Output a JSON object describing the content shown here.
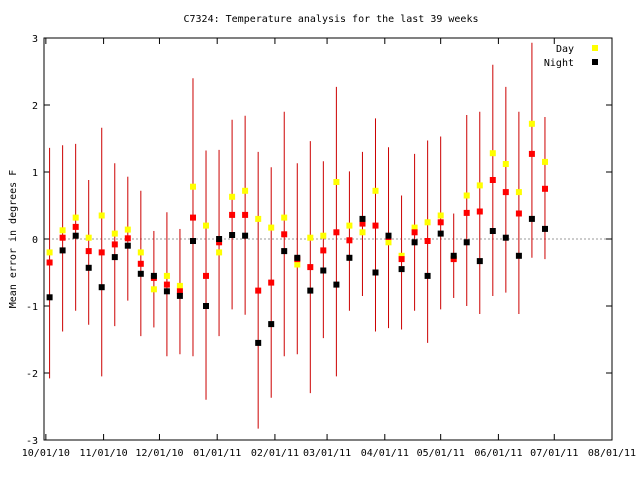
{
  "chart_data": {
    "type": "scatter",
    "title": "C7324: Temperature analysis for the last 39 weeks",
    "ylabel": "Mean error in degrees F",
    "xlabel": "",
    "ylim": [
      -3,
      3
    ],
    "xlim": [
      "2010-09-30",
      "2011-08-01"
    ],
    "grid": false,
    "zero_line": true,
    "legend_position": "top-right",
    "y_ticks": [
      -3,
      -2,
      -1,
      0,
      1,
      2,
      3
    ],
    "x_ticks": [
      {
        "date": "2010-10-01",
        "label": "10/01/10"
      },
      {
        "date": "2010-11-01",
        "label": "11/01/10"
      },
      {
        "date": "2010-12-01",
        "label": "12/01/10"
      },
      {
        "date": "2011-01-01",
        "label": "01/01/11"
      },
      {
        "date": "2011-02-01",
        "label": "02/01/11"
      },
      {
        "date": "2011-03-01",
        "label": "03/01/11"
      },
      {
        "date": "2011-04-01",
        "label": "04/01/11"
      },
      {
        "date": "2011-05-01",
        "label": "05/01/11"
      },
      {
        "date": "2011-06-01",
        "label": "06/01/11"
      },
      {
        "date": "2011-07-01",
        "label": "07/01/11"
      },
      {
        "date": "2011-08-01",
        "label": "08/01/11"
      }
    ],
    "series": [
      {
        "name": "Day",
        "color": "#ffff00"
      },
      {
        "name": "Night",
        "color": "#000000"
      }
    ],
    "mean_color": "#ff0000",
    "errorbar_color": "#cc0000",
    "weeks": [
      {
        "date": "2010-10-03",
        "day": -0.2,
        "mean": -0.35,
        "night": -0.87,
        "low": -2.08,
        "high": 1.36
      },
      {
        "date": "2010-10-10",
        "day": 0.13,
        "mean": 0.02,
        "night": -0.17,
        "low": -1.38,
        "high": 1.4
      },
      {
        "date": "2010-10-17",
        "day": 0.32,
        "mean": 0.18,
        "night": 0.05,
        "low": -1.07,
        "high": 1.42
      },
      {
        "date": "2010-10-24",
        "day": 0.02,
        "mean": -0.18,
        "night": -0.43,
        "low": -1.28,
        "high": 0.88
      },
      {
        "date": "2010-10-31",
        "day": 0.35,
        "mean": -0.2,
        "night": -0.72,
        "low": -2.05,
        "high": 1.66
      },
      {
        "date": "2010-11-07",
        "day": 0.08,
        "mean": -0.08,
        "night": -0.27,
        "low": -1.3,
        "high": 1.13
      },
      {
        "date": "2010-11-14",
        "day": 0.14,
        "mean": 0.01,
        "night": -0.1,
        "low": -0.92,
        "high": 0.93
      },
      {
        "date": "2010-11-21",
        "day": -0.2,
        "mean": -0.37,
        "night": -0.52,
        "low": -1.45,
        "high": 0.72
      },
      {
        "date": "2010-11-28",
        "day": -0.75,
        "mean": -0.58,
        "night": -0.55,
        "low": -1.32,
        "high": 0.12
      },
      {
        "date": "2010-12-05",
        "day": -0.55,
        "mean": -0.68,
        "night": -0.78,
        "low": -1.75,
        "high": 0.4
      },
      {
        "date": "2010-12-12",
        "day": -0.7,
        "mean": -0.78,
        "night": -0.85,
        "low": -1.72,
        "high": 0.15
      },
      {
        "date": "2010-12-19",
        "day": 0.78,
        "mean": 0.32,
        "night": -0.03,
        "low": -1.75,
        "high": 2.4
      },
      {
        "date": "2010-12-26",
        "day": 0.2,
        "mean": -0.55,
        "night": -1.0,
        "low": -2.4,
        "high": 1.32
      },
      {
        "date": "2011-01-02",
        "day": -0.2,
        "mean": -0.05,
        "night": 0.0,
        "low": -1.45,
        "high": 1.33
      },
      {
        "date": "2011-01-09",
        "day": 0.63,
        "mean": 0.36,
        "night": 0.06,
        "low": -1.05,
        "high": 1.78
      },
      {
        "date": "2011-01-16",
        "day": 0.72,
        "mean": 0.36,
        "night": 0.05,
        "low": -1.13,
        "high": 1.84
      },
      {
        "date": "2011-01-23",
        "day": 0.3,
        "mean": -0.77,
        "night": -1.55,
        "low": -2.83,
        "high": 1.3
      },
      {
        "date": "2011-01-30",
        "day": 0.17,
        "mean": -0.65,
        "night": -1.27,
        "low": -2.37,
        "high": 1.07
      },
      {
        "date": "2011-02-06",
        "day": 0.32,
        "mean": 0.07,
        "night": -0.18,
        "low": -1.75,
        "high": 1.9
      },
      {
        "date": "2011-02-13",
        "day": -0.38,
        "mean": -0.3,
        "night": -0.28,
        "low": -1.72,
        "high": 1.13
      },
      {
        "date": "2011-02-20",
        "day": 0.02,
        "mean": -0.42,
        "night": -0.77,
        "low": -2.3,
        "high": 1.46
      },
      {
        "date": "2011-02-27",
        "day": 0.05,
        "mean": -0.17,
        "night": -0.47,
        "low": -1.48,
        "high": 1.16
      },
      {
        "date": "2011-03-06",
        "day": 0.85,
        "mean": 0.1,
        "night": -0.68,
        "low": -2.05,
        "high": 2.27
      },
      {
        "date": "2011-03-13",
        "day": 0.2,
        "mean": -0.02,
        "night": -0.28,
        "low": -1.07,
        "high": 1.01
      },
      {
        "date": "2011-03-20",
        "day": 0.1,
        "mean": 0.23,
        "night": 0.3,
        "low": -0.85,
        "high": 1.3
      },
      {
        "date": "2011-03-27",
        "day": 0.72,
        "mean": 0.2,
        "night": -0.5,
        "low": -1.38,
        "high": 1.8
      },
      {
        "date": "2011-04-03",
        "day": -0.05,
        "mean": 0.03,
        "night": 0.05,
        "low": -1.33,
        "high": 1.37
      },
      {
        "date": "2011-04-10",
        "day": -0.25,
        "mean": -0.3,
        "night": -0.45,
        "low": -1.35,
        "high": 0.65
      },
      {
        "date": "2011-04-17",
        "day": 0.17,
        "mean": 0.1,
        "night": -0.05,
        "low": -1.07,
        "high": 1.27
      },
      {
        "date": "2011-04-24",
        "day": 0.25,
        "mean": -0.03,
        "night": -0.55,
        "low": -1.55,
        "high": 1.47
      },
      {
        "date": "2011-05-01",
        "day": 0.35,
        "mean": 0.25,
        "night": 0.08,
        "low": -1.05,
        "high": 1.53
      },
      {
        "date": "2011-05-08",
        "day": -0.28,
        "mean": -0.3,
        "night": -0.25,
        "low": -0.88,
        "high": 0.38
      },
      {
        "date": "2011-05-15",
        "day": 0.65,
        "mean": 0.39,
        "night": -0.05,
        "low": -1.0,
        "high": 1.85
      },
      {
        "date": "2011-05-22",
        "day": 0.8,
        "mean": 0.41,
        "night": -0.33,
        "low": -1.12,
        "high": 1.9
      },
      {
        "date": "2011-05-29",
        "day": 1.28,
        "mean": 0.88,
        "night": 0.12,
        "low": -0.85,
        "high": 2.6
      },
      {
        "date": "2011-06-05",
        "day": 1.12,
        "mean": 0.7,
        "night": 0.02,
        "low": -0.8,
        "high": 2.27
      },
      {
        "date": "2011-06-12",
        "day": 0.7,
        "mean": 0.38,
        "night": -0.25,
        "low": -1.12,
        "high": 1.9
      },
      {
        "date": "2011-06-19",
        "day": 1.72,
        "mean": 1.27,
        "night": 0.3,
        "low": -0.28,
        "high": 2.93
      },
      {
        "date": "2011-06-26",
        "day": 1.15,
        "mean": 0.75,
        "night": 0.15,
        "low": -0.3,
        "high": 1.82
      }
    ]
  }
}
